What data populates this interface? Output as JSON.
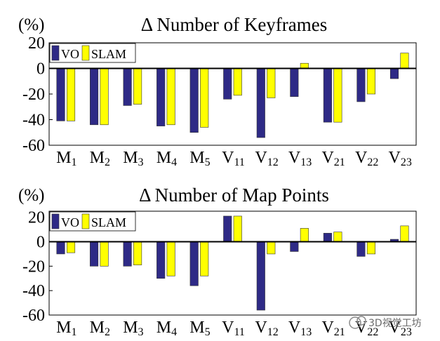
{
  "chart_data": [
    {
      "type": "bar",
      "title": "Δ Number of Keyframes",
      "unit_label": "(%)",
      "categories": [
        {
          "base": "M",
          "sub": "1"
        },
        {
          "base": "M",
          "sub": "2"
        },
        {
          "base": "M",
          "sub": "3"
        },
        {
          "base": "M",
          "sub": "4"
        },
        {
          "base": "M",
          "sub": "5"
        },
        {
          "base": "V",
          "sub": "11"
        },
        {
          "base": "V",
          "sub": "12"
        },
        {
          "base": "V",
          "sub": "13"
        },
        {
          "base": "V",
          "sub": "21"
        },
        {
          "base": "V",
          "sub": "22"
        },
        {
          "base": "V",
          "sub": "23"
        }
      ],
      "series": [
        {
          "name": "VO",
          "color": "#2e2a86",
          "values": [
            -41,
            -44,
            -29,
            -45,
            -50,
            -24,
            -54,
            -22,
            -42,
            -26,
            -8
          ]
        },
        {
          "name": "SLAM",
          "color": "#ffff00",
          "values": [
            -41,
            -44,
            -28,
            -44,
            -46,
            -21,
            -23,
            4,
            -42,
            -20,
            12
          ]
        }
      ],
      "ylim": [
        -60,
        20
      ],
      "yticks": [
        20,
        0,
        -20,
        -40,
        -60
      ],
      "legend": "top-left",
      "grid": false
    },
    {
      "type": "bar",
      "title": "Δ Number of Map Points",
      "unit_label": "(%)",
      "categories": [
        {
          "base": "M",
          "sub": "1"
        },
        {
          "base": "M",
          "sub": "2"
        },
        {
          "base": "M",
          "sub": "3"
        },
        {
          "base": "M",
          "sub": "4"
        },
        {
          "base": "M",
          "sub": "5"
        },
        {
          "base": "V",
          "sub": "11"
        },
        {
          "base": "V",
          "sub": "12"
        },
        {
          "base": "V",
          "sub": "13"
        },
        {
          "base": "V",
          "sub": "21"
        },
        {
          "base": "V",
          "sub": "22"
        },
        {
          "base": "V",
          "sub": "23"
        }
      ],
      "series": [
        {
          "name": "VO",
          "color": "#2e2a86",
          "values": [
            -10,
            -20,
            -20,
            -30,
            -36,
            21,
            -56,
            -8,
            7,
            -12,
            2
          ]
        },
        {
          "name": "SLAM",
          "color": "#ffff00",
          "values": [
            -9,
            -20,
            -19,
            -28,
            -28,
            21,
            -10,
            11,
            8,
            -10,
            13
          ]
        }
      ],
      "ylim": [
        -60,
        25
      ],
      "yticks": [
        20,
        0,
        -20,
        -40,
        -60
      ],
      "legend": "top-left",
      "grid": false
    }
  ],
  "watermark": "3D视觉工坊"
}
